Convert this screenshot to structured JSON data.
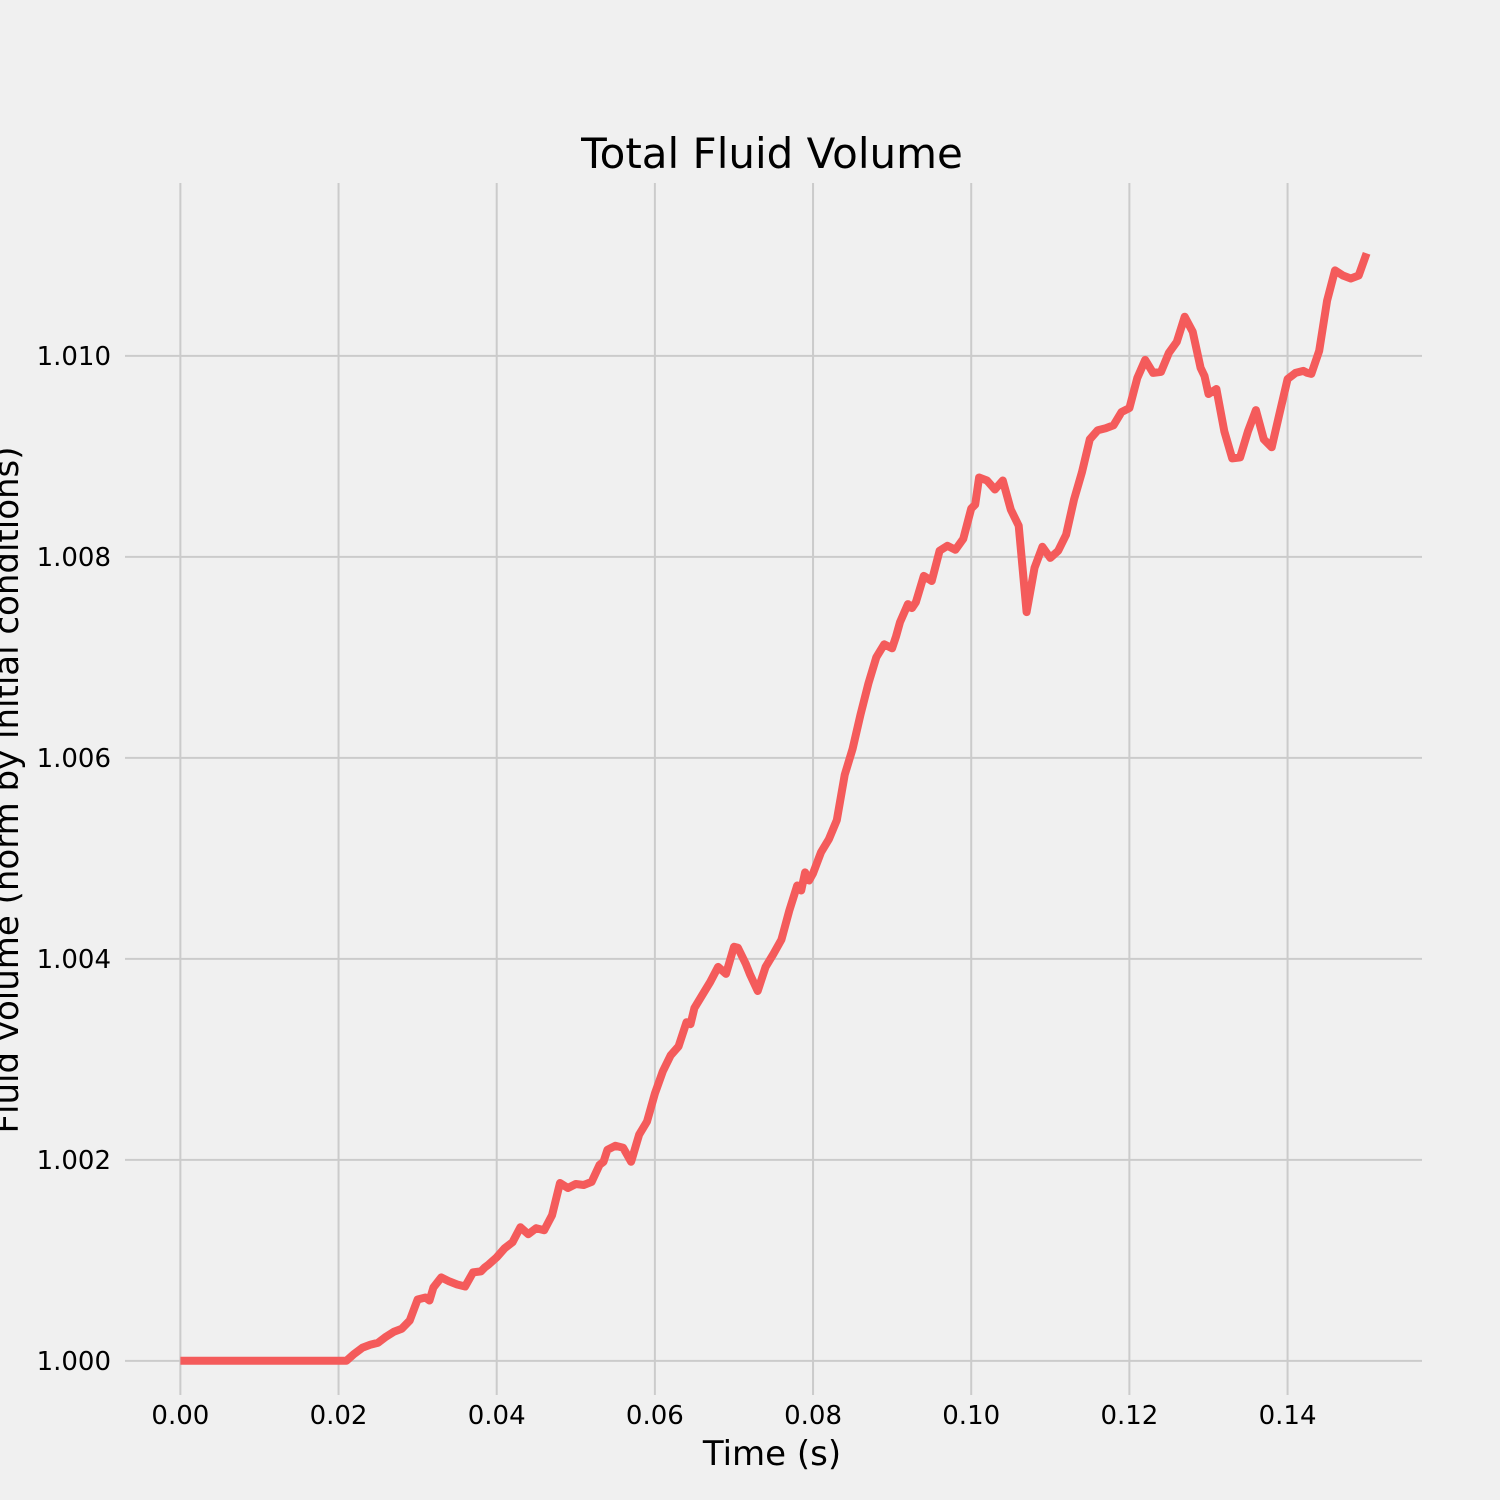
{
  "chart_data": {
    "type": "line",
    "title": "Total Fluid Volume",
    "xlabel": "Time (s)",
    "ylabel": "Fluid volume (norm by initial conditions)",
    "xlim": [
      -0.007,
      0.157
    ],
    "ylim": [
      0.99966,
      1.01172
    ],
    "xticks": [
      0.0,
      0.02,
      0.04,
      0.06,
      0.08,
      0.1,
      0.12,
      0.14
    ],
    "xtick_labels": [
      "0.00",
      "0.02",
      "0.04",
      "0.06",
      "0.08",
      "0.10",
      "0.12",
      "0.14"
    ],
    "yticks": [
      1.0,
      1.002,
      1.004,
      1.006,
      1.008,
      1.01
    ],
    "ytick_labels": [
      "1.000",
      "1.002",
      "1.004",
      "1.006",
      "1.008",
      "1.010"
    ],
    "grid": true,
    "colors": {
      "background": "#f0f0f0",
      "grid": "#cbcbcb",
      "line": "#f45b5b"
    },
    "series": [
      {
        "x": [
          0.0,
          0.005,
          0.01,
          0.015,
          0.02,
          0.021,
          0.022,
          0.023,
          0.024,
          0.025,
          0.026,
          0.027,
          0.028,
          0.029,
          0.03,
          0.031,
          0.0315,
          0.032,
          0.033,
          0.034,
          0.035,
          0.036,
          0.037,
          0.038,
          0.0385,
          0.039,
          0.04,
          0.041,
          0.042,
          0.043,
          0.044,
          0.045,
          0.046,
          0.047,
          0.048,
          0.049,
          0.05,
          0.051,
          0.052,
          0.053,
          0.0535,
          0.054,
          0.055,
          0.056,
          0.057,
          0.058,
          0.059,
          0.06,
          0.061,
          0.062,
          0.063,
          0.064,
          0.0645,
          0.065,
          0.066,
          0.067,
          0.068,
          0.069,
          0.07,
          0.0705,
          0.0715,
          0.072,
          0.073,
          0.074,
          0.075,
          0.076,
          0.077,
          0.078,
          0.0785,
          0.079,
          0.0795,
          0.08,
          0.081,
          0.082,
          0.083,
          0.084,
          0.085,
          0.086,
          0.087,
          0.088,
          0.089,
          0.09,
          0.0905,
          0.091,
          0.092,
          0.0925,
          0.093,
          0.094,
          0.095,
          0.096,
          0.097,
          0.098,
          0.099,
          0.1,
          0.1005,
          0.101,
          0.102,
          0.103,
          0.104,
          0.105,
          0.106,
          0.107,
          0.108,
          0.109,
          0.11,
          0.111,
          0.112,
          0.113,
          0.114,
          0.115,
          0.116,
          0.117,
          0.118,
          0.119,
          0.12,
          0.121,
          0.122,
          0.123,
          0.124,
          0.125,
          0.126,
          0.127,
          0.128,
          0.129,
          0.1295,
          0.13,
          0.131,
          0.132,
          0.133,
          0.134,
          0.135,
          0.136,
          0.137,
          0.138,
          0.139,
          0.14,
          0.141,
          0.142,
          0.1425,
          0.143,
          0.144,
          0.145,
          0.146,
          0.147,
          0.148,
          0.149,
          0.15
        ],
        "values": [
          1.0,
          1.0,
          1.0,
          1.0,
          1.0,
          1.0,
          1.00007,
          1.00013,
          1.00016,
          1.00018,
          1.00024,
          1.00029,
          1.00032,
          1.0004,
          1.00061,
          1.00063,
          1.0006,
          1.00073,
          1.00083,
          1.00079,
          1.00076,
          1.00074,
          1.00088,
          1.00089,
          1.00093,
          1.00096,
          1.00103,
          1.00112,
          1.00118,
          1.00133,
          1.00126,
          1.00132,
          1.0013,
          1.00145,
          1.00177,
          1.00172,
          1.00176,
          1.00175,
          1.00178,
          1.00195,
          1.00198,
          1.0021,
          1.00214,
          1.00212,
          1.00198,
          1.00225,
          1.00238,
          1.00266,
          1.00288,
          1.00304,
          1.00313,
          1.00337,
          1.00335,
          1.00351,
          1.00364,
          1.00377,
          1.00392,
          1.00385,
          1.00412,
          1.00411,
          1.00395,
          1.00385,
          1.00368,
          1.00392,
          1.00405,
          1.00419,
          1.00448,
          1.00473,
          1.00468,
          1.00486,
          1.00478,
          1.00485,
          1.00506,
          1.00519,
          1.00538,
          1.00583,
          1.00609,
          1.00643,
          1.00674,
          1.007,
          1.00713,
          1.00709,
          1.00721,
          1.00735,
          1.00753,
          1.00749,
          1.00755,
          1.00781,
          1.00776,
          1.00806,
          1.00811,
          1.00807,
          1.00818,
          1.00848,
          1.00852,
          1.00879,
          1.00876,
          1.00867,
          1.00876,
          1.00847,
          1.00831,
          1.00745,
          1.00789,
          1.0081,
          1.00799,
          1.00806,
          1.00822,
          1.00857,
          1.00884,
          1.00917,
          1.00926,
          1.00928,
          1.00931,
          1.00944,
          1.00948,
          1.00978,
          1.00996,
          1.00983,
          1.00984,
          1.01003,
          1.01014,
          1.01039,
          1.01024,
          1.00988,
          1.0098,
          1.00962,
          1.00967,
          1.00925,
          1.00898,
          1.00899,
          1.00925,
          1.00946,
          1.00917,
          1.00909,
          1.00943,
          1.00977,
          1.00983,
          1.00985,
          1.00983,
          1.00982,
          1.01005,
          1.01055,
          1.01085,
          1.0108,
          1.01077,
          1.0108,
          1.01102
        ]
      }
    ]
  }
}
